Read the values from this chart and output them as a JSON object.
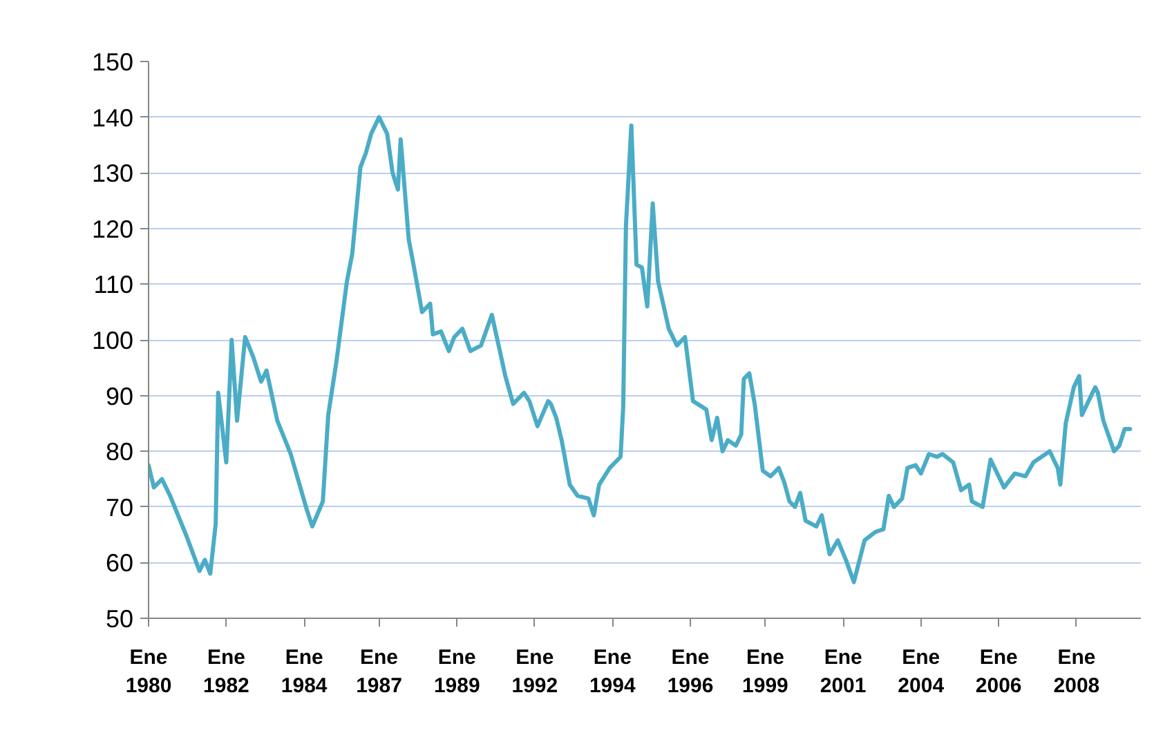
{
  "chart_data": {
    "type": "line",
    "x": [
      "1980-01",
      "1980-03",
      "1980-06",
      "1980-09",
      "1981-03",
      "1981-08",
      "1981-10",
      "1981-12",
      "1982-02",
      "1982-03",
      "1982-06",
      "1982-08",
      "1982-10",
      "1983-01",
      "1983-04",
      "1983-07",
      "1983-09",
      "1984-01",
      "1984-06",
      "1984-12",
      "1985-02",
      "1985-06",
      "1985-08",
      "1985-11",
      "1986-03",
      "1986-05",
      "1986-08",
      "1986-10",
      "1986-12",
      "1987-03",
      "1987-06",
      "1987-08",
      "1987-10",
      "1987-11",
      "1988-02",
      "1988-04",
      "1988-07",
      "1988-10",
      "1988-11",
      "1989-02",
      "1989-05",
      "1989-07",
      "1989-10",
      "1990-01",
      "1990-05",
      "1990-09",
      "1990-12",
      "1991-02",
      "1991-05",
      "1991-09",
      "1991-11",
      "1992-02",
      "1992-06",
      "1992-07",
      "1992-09",
      "1992-11",
      "1993-02",
      "1993-05",
      "1993-09",
      "1993-11",
      "1994-01",
      "1994-05",
      "1994-09",
      "1994-10",
      "1994-11",
      "1995-01",
      "1995-03",
      "1995-05",
      "1995-07",
      "1995-09",
      "1995-11",
      "1996-03",
      "1996-06",
      "1996-09",
      "1996-12",
      "1997-05",
      "1997-07",
      "1997-09",
      "1997-11",
      "1998-01",
      "1998-04",
      "1998-06",
      "1998-07",
      "1998-09",
      "1998-11",
      "1999-02",
      "1999-05",
      "1999-08",
      "1999-10",
      "1999-12",
      "2000-02",
      "2000-04",
      "2000-06",
      "2000-10",
      "2000-12",
      "2001-03",
      "2001-06",
      "2001-09",
      "2001-12",
      "2002-04",
      "2002-08",
      "2002-11",
      "2003-01",
      "2003-03",
      "2003-06",
      "2003-08",
      "2003-11",
      "2004-01",
      "2004-04",
      "2004-07",
      "2004-09",
      "2005-01",
      "2005-04",
      "2005-07",
      "2005-08",
      "2005-12",
      "2006-03",
      "2006-06",
      "2006-08",
      "2006-12",
      "2007-04",
      "2007-07",
      "2007-10",
      "2008-01",
      "2008-04",
      "2008-05",
      "2008-07",
      "2008-10",
      "2008-12",
      "2009-01",
      "2009-04",
      "2009-06",
      "2009-07",
      "2009-09",
      "2010-01",
      "2010-03",
      "2010-05",
      "2010-07"
    ],
    "series": [
      {
        "color": "#4bacc6",
        "values": [
          77.5,
          73.5,
          75,
          72,
          65,
          58.5,
          60.5,
          58,
          67,
          90.5,
          78,
          100,
          85.5,
          100.5,
          97,
          92.5,
          94.5,
          85.5,
          79.5,
          69.5,
          66.5,
          71,
          86.5,
          96,
          110.5,
          115.5,
          131,
          133.5,
          137,
          140,
          137,
          130,
          127,
          136,
          118,
          113,
          105,
          106.5,
          101,
          101.5,
          98,
          100.5,
          102,
          98,
          99,
          104.5,
          98,
          93.5,
          88.5,
          90.5,
          89,
          84.5,
          89,
          88.5,
          86,
          82,
          74,
          72,
          71.5,
          68.5,
          74,
          77,
          79,
          88,
          120.5,
          138.5,
          113.5,
          113,
          106,
          124.5,
          110.5,
          102,
          99,
          100.5,
          89,
          87.5,
          82,
          86,
          80,
          82,
          81,
          83,
          93,
          94,
          88.5,
          76.5,
          75.5,
          77,
          74.5,
          71,
          70,
          72.5,
          67.5,
          66.5,
          68.5,
          61.5,
          64,
          60.5,
          56.5,
          64,
          65.5,
          66,
          72,
          70,
          71.5,
          77,
          77.5,
          76,
          79.5,
          79,
          79.5,
          78,
          73,
          74,
          71,
          70,
          78.5,
          75.5,
          73.5,
          76,
          75.5,
          78,
          79,
          80,
          77,
          74,
          85,
          91.5,
          93.5,
          86.5,
          89.5,
          91.5,
          90.5,
          85.5,
          80,
          81,
          84,
          84
        ]
      }
    ],
    "xlim": [
      "1980-01",
      "2010-11"
    ],
    "xticks": [
      {
        "value": "1980-01",
        "label": "Ene\n1980"
      },
      {
        "value": "1982-06",
        "label": "Ene\n1982"
      },
      {
        "value": "1984-11",
        "label": "Ene\n1984"
      },
      {
        "value": "1987-03",
        "label": "Ene\n1987"
      },
      {
        "value": "1989-08",
        "label": "Ene\n1989"
      },
      {
        "value": "1992-01",
        "label": "Ene\n1992"
      },
      {
        "value": "1994-06",
        "label": "Ene\n1994"
      },
      {
        "value": "1996-11",
        "label": "Ene\n1996"
      },
      {
        "value": "1999-03",
        "label": "Ene\n1999"
      },
      {
        "value": "2001-08",
        "label": "Ene\n2001"
      },
      {
        "value": "2004-01",
        "label": "Ene\n2004"
      },
      {
        "value": "2006-06",
        "label": "Ene\n2006"
      },
      {
        "value": "2008-11",
        "label": "Ene\n2008"
      }
    ],
    "ylim": [
      50,
      150
    ],
    "yticks": [
      50,
      60,
      70,
      80,
      90,
      100,
      110,
      120,
      130,
      140,
      150
    ],
    "grid": "y",
    "line_style": "solid"
  }
}
